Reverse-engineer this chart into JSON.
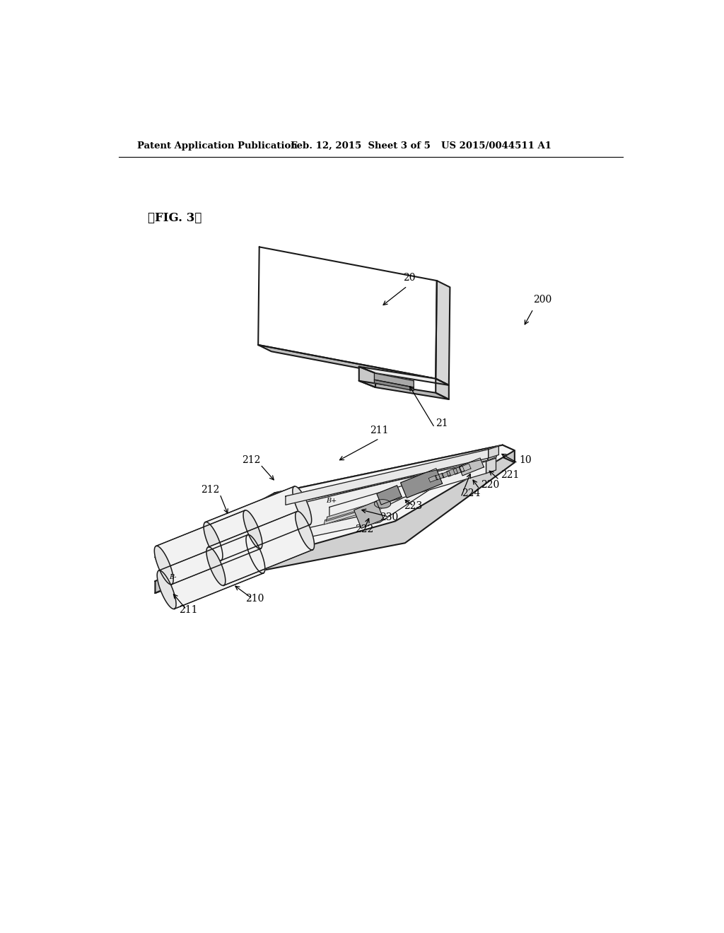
{
  "bg_color": "#ffffff",
  "header_left": "Patent Application Publication",
  "header_mid": "Feb. 12, 2015  Sheet 3 of 5",
  "header_right": "US 2015/0044511 A1",
  "fig_label": "【FIG. 3】",
  "line_color": "#1a1a1a",
  "fill_top": "#ffffff",
  "fill_left": "#e8e8e8",
  "fill_right": "#d0d0d0",
  "fill_inner": "#f5f5f5"
}
